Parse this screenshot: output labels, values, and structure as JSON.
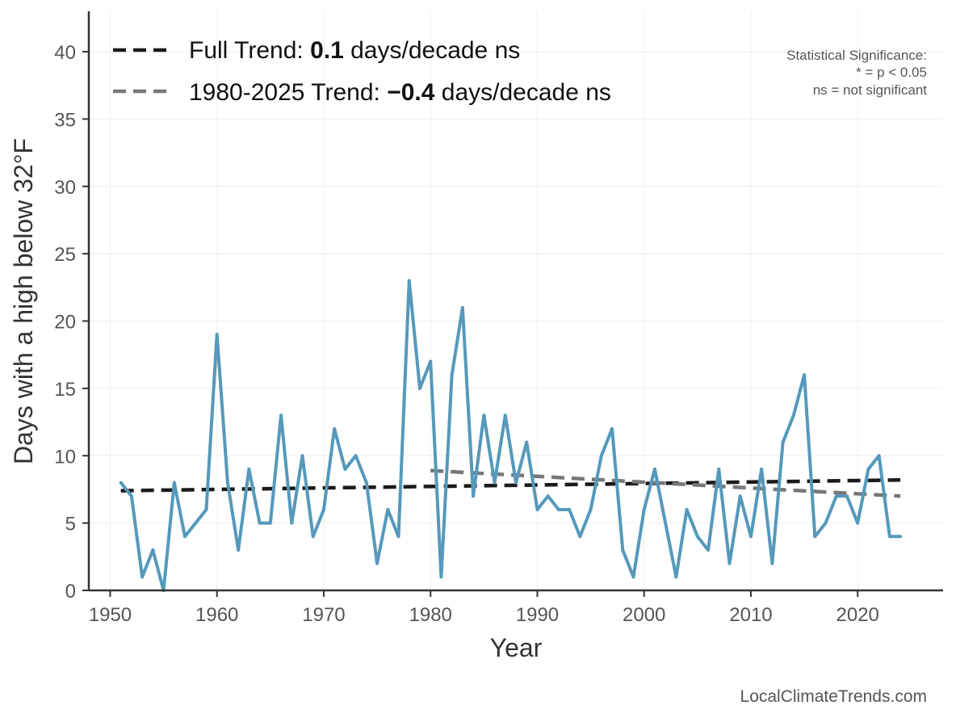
{
  "chart_data": {
    "type": "line",
    "title": "",
    "xlabel": "Year",
    "ylabel": "Days with a high below 32°F",
    "xlim": [
      1948,
      2028
    ],
    "ylim": [
      0,
      43
    ],
    "xticks": [
      1950,
      1960,
      1970,
      1980,
      1990,
      2000,
      2010,
      2020
    ],
    "yticks": [
      0,
      5,
      10,
      15,
      20,
      25,
      30,
      35,
      40
    ],
    "grid": true,
    "legend_position": "top-left",
    "colors": {
      "series": "#5599bb",
      "full_trend": "#1a1a1a",
      "recent_trend": "#777777",
      "grid": "#eeeeee",
      "axis": "#333333"
    },
    "series": [
      {
        "name": "Days with a high below 32°F",
        "x": [
          1951,
          1952,
          1953,
          1954,
          1955,
          1956,
          1957,
          1958,
          1959,
          1960,
          1961,
          1962,
          1963,
          1964,
          1965,
          1966,
          1967,
          1968,
          1969,
          1970,
          1971,
          1972,
          1973,
          1974,
          1975,
          1976,
          1977,
          1978,
          1979,
          1980,
          1981,
          1982,
          1983,
          1984,
          1985,
          1986,
          1987,
          1988,
          1989,
          1990,
          1991,
          1992,
          1993,
          1994,
          1995,
          1996,
          1997,
          1998,
          1999,
          2000,
          2001,
          2002,
          2003,
          2004,
          2005,
          2006,
          2007,
          2008,
          2009,
          2010,
          2011,
          2012,
          2013,
          2014,
          2015,
          2016,
          2017,
          2018,
          2019,
          2020,
          2021,
          2022,
          2023,
          2024
        ],
        "values": [
          8,
          7,
          1,
          3,
          0,
          8,
          4,
          5,
          6,
          19,
          8,
          3,
          9,
          5,
          5,
          13,
          5,
          10,
          4,
          6,
          12,
          9,
          10,
          8,
          2,
          6,
          4,
          23,
          15,
          17,
          1,
          16,
          21,
          7,
          13,
          8,
          13,
          8,
          11,
          6,
          7,
          6,
          6,
          4,
          6,
          10,
          12,
          3,
          1,
          6,
          9,
          5,
          1,
          6,
          4,
          3,
          9,
          2,
          7,
          4,
          9,
          2,
          11,
          13,
          16,
          4,
          5,
          7,
          7,
          5,
          9,
          10,
          4,
          4
        ]
      }
    ],
    "trend_lines": [
      {
        "name": "full",
        "x": [
          1951,
          2024
        ],
        "y": [
          7.4,
          8.2
        ]
      },
      {
        "name": "recent",
        "x": [
          1980,
          2024
        ],
        "y": [
          8.9,
          7.0
        ]
      }
    ],
    "legend": {
      "full": {
        "prefix": "Full Trend: ",
        "value": "0.1",
        "suffix": " days/decade ns"
      },
      "recent": {
        "prefix": "1980-2025 Trend: ",
        "value": "−0.4",
        "suffix": " days/decade ns"
      }
    },
    "significance": {
      "line1": "Statistical Significance:",
      "line2": "* = p < 0.05",
      "line3": "ns = not significant"
    }
  },
  "credit": "LocalClimateTrends.com"
}
